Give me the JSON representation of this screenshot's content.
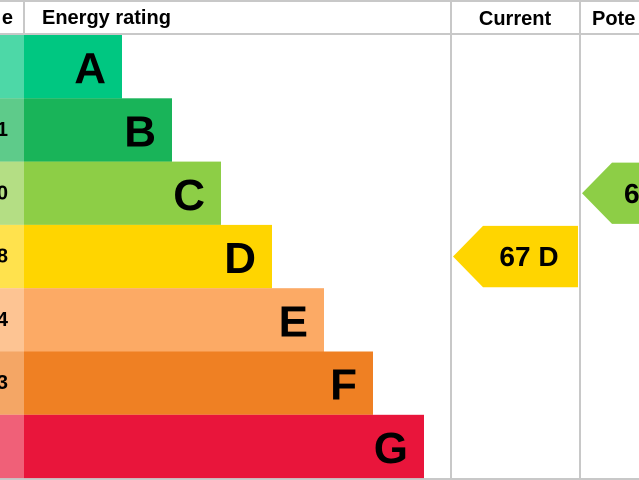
{
  "header": {
    "score": "e",
    "rating": "Energy rating",
    "current": "Current",
    "potential": "Pote"
  },
  "rows": [
    {
      "band": "A",
      "color": "#00c781",
      "tint": "#4dd8a7"
    },
    {
      "band": "B",
      "score": "1",
      "color": "#19b459",
      "tint": "#5ecb8a"
    },
    {
      "band": "C",
      "score": "0",
      "color": "#8dce46",
      "tint": "#b4de84"
    },
    {
      "band": "D",
      "score": "8",
      "color": "#ffd500",
      "tint": "#ffe24d"
    },
    {
      "band": "E",
      "score": "4",
      "color": "#fcaa65",
      "tint": "#fdc493"
    },
    {
      "band": "F",
      "score": "3",
      "color": "#ef8023",
      "tint": "#f4a665"
    },
    {
      "band": "G",
      "color": "#e9153b",
      "tint": "#f06078"
    }
  ],
  "current": {
    "label": "67 D",
    "row": 3
  },
  "potential": {
    "label": "6",
    "row": 2
  }
}
